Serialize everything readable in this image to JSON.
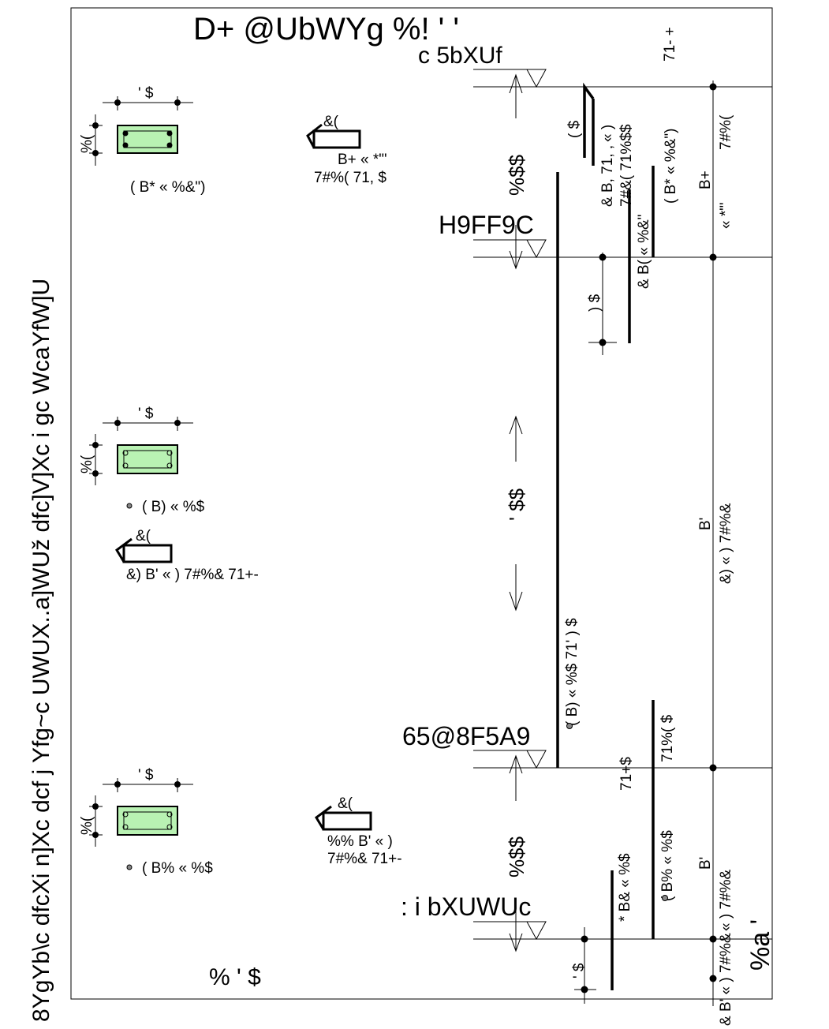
{
  "title": "D+ @UbWYg %! ' '",
  "side_text": "8YgYb\\c dfcXi n]Xc dcf j Yfg~c UWUX..a]WUž dfc]V]Xc i gc WcaYfW]U",
  "page_number": "% ' $",
  "corner_code": "%a '",
  "levels": [
    {
      "name": "c 5bXUf",
      "dim": "%$$"
    },
    {
      "name": "H9FF9C",
      "dim": "' $$"
    },
    {
      "name": "65@8F5A9",
      "dim": "%$$"
    },
    {
      "name": ": i bXUWUc",
      "dim": ""
    }
  ],
  "beams": [
    {
      "width_dim": "' $",
      "height_dim": "%(",
      "label": "( B* « %&\")",
      "fill": "#b9f2b3"
    },
    {
      "width_dim": "' $",
      "height_dim": "%(",
      "label": "( B) « %$",
      "fill": "#b9f2b3"
    },
    {
      "width_dim": "' $",
      "height_dim": "%(",
      "label": "( B% « %$",
      "fill": "#b9f2b3"
    }
  ],
  "stirrups": [
    {
      "num": "&(",
      "line1": "B+ « *\"'",
      "line2": "7#%( 71, $"
    },
    {
      "num": "&(",
      "line1": "&) B' « ) 7#%& 71+-",
      "line2": ""
    },
    {
      "num": "&(",
      "line1": "%% B' « )",
      "line2": "7#%& 71+-"
    }
  ],
  "rebar_texts": [
    {
      "id": "v1",
      "text": "( $"
    },
    {
      "id": "v2",
      "text": "« )"
    },
    {
      "id": "v3",
      "text": "& B, 71, ,"
    },
    {
      "id": "v4",
      "text": "7#&( 71%$$"
    },
    {
      "id": "v5",
      "text": "( B* « %&\")"
    },
    {
      "id": "v6",
      "text": "B+"
    },
    {
      "id": "v7",
      "text": "7#%("
    },
    {
      "id": "v8",
      "text": "71- +"
    },
    {
      "id": "v9",
      "text": "« *\"'"
    },
    {
      "id": "v10",
      "text": "& B( « %&\""
    },
    {
      "id": "v11",
      "text": ") $"
    },
    {
      "id": "v12",
      "text": "( B) « %$ 71' ) $"
    },
    {
      "id": "v13",
      "text": "B'"
    },
    {
      "id": "v14",
      "text": "&) « ) 7#%&"
    },
    {
      "id": "v15",
      "text": "71%( $"
    },
    {
      "id": "v16",
      "text": "( B% « %$"
    },
    {
      "id": "v17",
      "text": "71+$"
    },
    {
      "id": "v18",
      "text": "* B& « %$"
    },
    {
      "id": "v19",
      "text": "B'"
    },
    {
      "id": "v20",
      "text": "« ) 7#%&"
    },
    {
      "id": "v21",
      "text": "& B' « ) 7#%&"
    },
    {
      "id": "v22",
      "text": "' $"
    }
  ]
}
